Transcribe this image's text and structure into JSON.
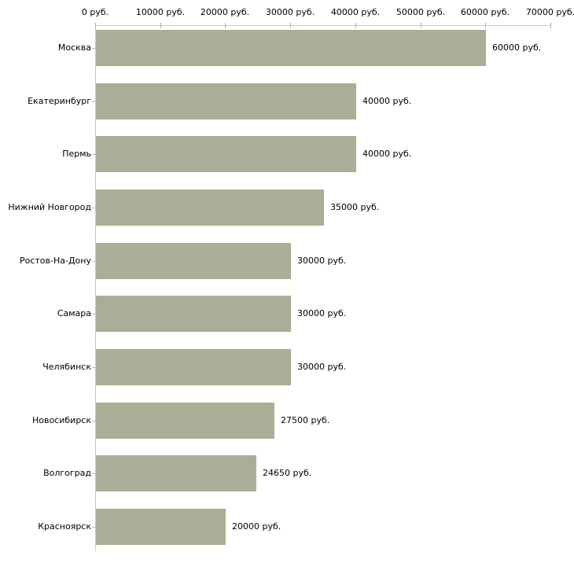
{
  "chart_data": {
    "type": "bar",
    "orientation": "horizontal",
    "title": "",
    "unit": "руб.",
    "categories": [
      "Москва",
      "Екатеринбург",
      "Пермь",
      "Нижний Новгород",
      "Ростов-На-Дону",
      "Самара",
      "Челябинск",
      "Новосибирск",
      "Волгоград",
      "Красноярск"
    ],
    "values": [
      60000,
      40000,
      40000,
      35000,
      30000,
      30000,
      30000,
      27500,
      24650,
      20000
    ],
    "value_labels": [
      "60000 руб.",
      "40000 руб.",
      "40000 руб.",
      "35000 руб.",
      "30000 руб.",
      "30000 руб.",
      "30000 руб.",
      "27500 руб.",
      "24650 руб.",
      "20000 руб."
    ],
    "x_ticks": [
      0,
      10000,
      20000,
      30000,
      40000,
      50000,
      60000,
      70000
    ],
    "x_tick_labels": [
      "0 руб.",
      "10000 руб.",
      "20000 руб.",
      "30000 руб.",
      "40000 руб.",
      "50000 руб.",
      "60000 руб.",
      "70000 руб."
    ],
    "xlim": [
      0,
      70000
    ],
    "grid": false,
    "legend": false,
    "colors": {
      "bar": "#a9af96",
      "axis_line": "#c9c9c9",
      "tick_mark": "#b1ae97",
      "category_tick": "#bdbdb0",
      "text": "#000000",
      "background": "#ffffff"
    }
  }
}
